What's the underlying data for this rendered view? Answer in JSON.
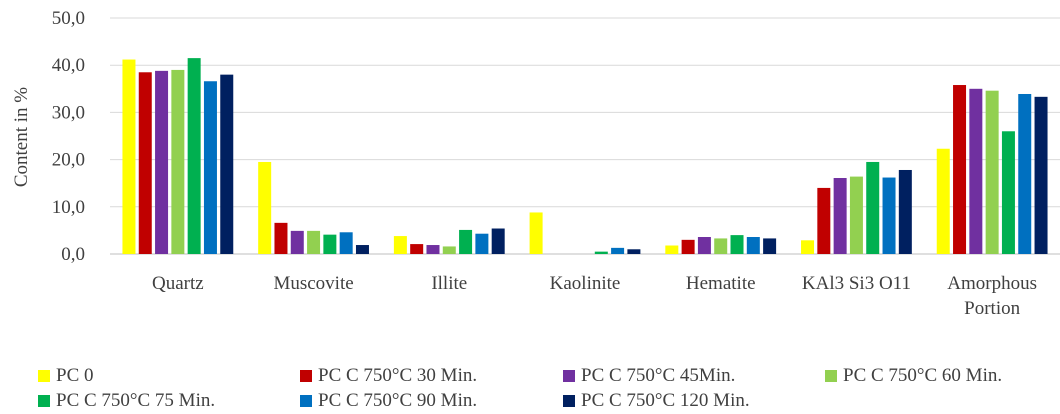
{
  "chart_data": {
    "type": "bar",
    "ylabel": "Content  in %",
    "ylim": [
      0,
      50
    ],
    "yticks": [
      "0,0",
      "10,0",
      "20,0",
      "30,0",
      "40,0",
      "50,0"
    ],
    "grid": true,
    "legend_position": "bottom",
    "categories": [
      "Quartz",
      "Muscovite",
      "Illite",
      "Kaolinite",
      "Hematite",
      "KAl3 Si3 O11",
      "Amorphous Portion"
    ],
    "category_lines": [
      [
        "Quartz"
      ],
      [
        "Muscovite"
      ],
      [
        "Illite"
      ],
      [
        "Kaolinite"
      ],
      [
        "Hematite"
      ],
      [
        "KAl3 Si3 O11"
      ],
      [
        "Amorphous",
        "Portion"
      ]
    ],
    "series": [
      {
        "name": "PC 0",
        "color": "#FFFF00",
        "values": [
          41.2,
          19.5,
          3.8,
          8.8,
          1.8,
          2.9,
          22.3
        ]
      },
      {
        "name": "PC C 750°C 30 Min.",
        "color": "#C00000",
        "values": [
          38.5,
          6.6,
          2.1,
          0.0,
          3.0,
          14.0,
          35.8
        ]
      },
      {
        "name": "PC C 750°C 45Min.",
        "color": "#7030A0",
        "values": [
          38.8,
          4.9,
          1.9,
          0.0,
          3.6,
          16.1,
          35.0
        ]
      },
      {
        "name": "PC C 750°C 60 Min.",
        "color": "#92D050",
        "values": [
          39.0,
          4.9,
          1.6,
          0.0,
          3.3,
          16.4,
          34.6
        ]
      },
      {
        "name": "PC C 750°C 75 Min.",
        "color": "#00B050",
        "values": [
          41.5,
          4.1,
          5.1,
          0.5,
          4.0,
          19.5,
          26.0
        ]
      },
      {
        "name": "PC C 750°C 90 Min.",
        "color": "#0070C0",
        "values": [
          36.6,
          4.6,
          4.3,
          1.3,
          3.6,
          16.2,
          33.9
        ]
      },
      {
        "name": "PC C 750°C 120 Min.",
        "color": "#002060",
        "values": [
          38.0,
          1.9,
          5.4,
          1.0,
          3.3,
          17.8,
          33.3
        ]
      }
    ]
  }
}
